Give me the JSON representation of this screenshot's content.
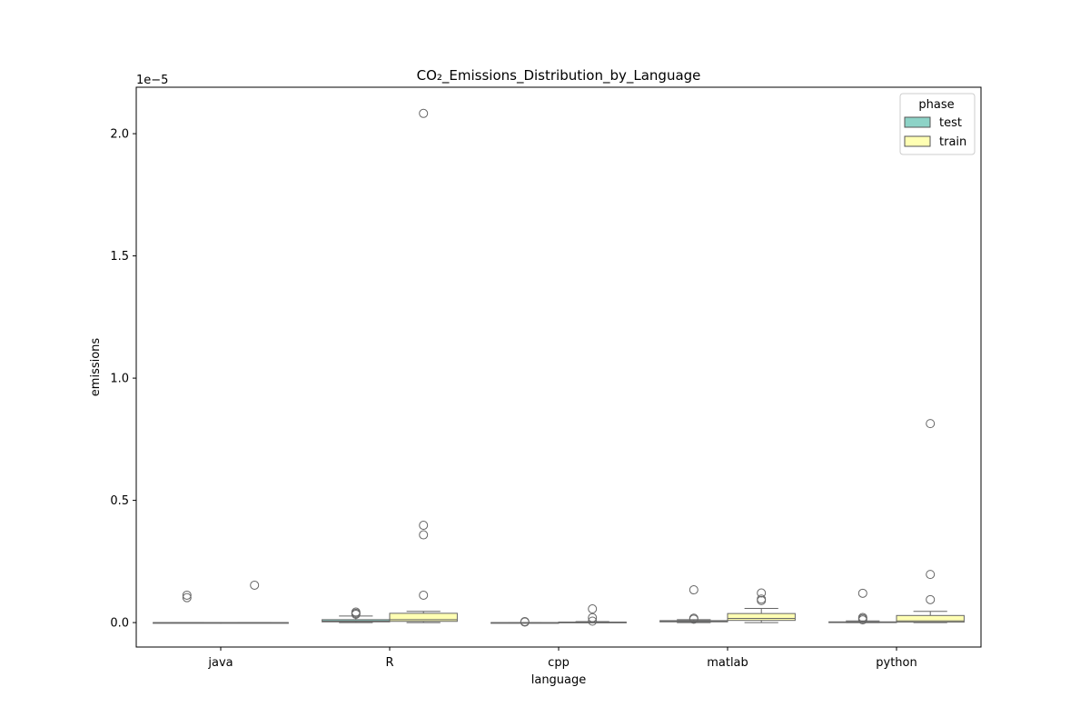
{
  "chart_data": {
    "type": "box",
    "title": "CO₂_Emissions_Distribution_by_Language",
    "xlabel": "language",
    "ylabel": "emissions",
    "y_offset_label": "1e−5",
    "ylim": [
      -1e-06,
      2.19e-05
    ],
    "yticks": [
      0.0,
      0.5,
      1.0,
      1.5,
      2.0
    ],
    "categories": [
      "java",
      "R",
      "cpp",
      "matlab",
      "python"
    ],
    "legend": {
      "title": "phase",
      "position": "top-right"
    },
    "series": [
      {
        "name": "test",
        "color": "#8dd3c7",
        "boxes": [
          {
            "category": "java",
            "q1": 0.0,
            "median": 0.0,
            "q3": 0.0,
            "whislo": 0.0,
            "whishi": 0.0,
            "fliers": [
              1.02e-06,
              1.12e-06
            ]
          },
          {
            "category": "R",
            "q1": 3e-08,
            "median": 6e-08,
            "q3": 1.2e-07,
            "whislo": 0.0,
            "whishi": 2.7e-07,
            "fliers": [
              3.4e-07,
              3.8e-07,
              4.3e-07
            ]
          },
          {
            "category": "cpp",
            "q1": 0.0,
            "median": 0.0,
            "q3": 0.0,
            "whislo": 0.0,
            "whishi": 0.0,
            "fliers": [
              2e-08,
              4e-08
            ]
          },
          {
            "category": "matlab",
            "q1": 3e-08,
            "median": 5e-08,
            "q3": 8e-08,
            "whislo": 0.0,
            "whishi": 1.2e-07,
            "fliers": [
              1.4e-07,
              1.8e-07,
              1.34e-06
            ]
          },
          {
            "category": "python",
            "q1": 0.0,
            "median": 1e-08,
            "q3": 3e-08,
            "whislo": 0.0,
            "whishi": 7e-08,
            "fliers": [
              1.1e-07,
              1.6e-07,
              2.1e-07,
              1.2e-06
            ]
          }
        ]
      },
      {
        "name": "train",
        "color": "#ffffb3",
        "boxes": [
          {
            "category": "java",
            "q1": 0.0,
            "median": 0.0,
            "q3": 0.0,
            "whislo": 0.0,
            "whishi": 0.0,
            "fliers": [
              1.53e-06
            ]
          },
          {
            "category": "R",
            "q1": 5e-08,
            "median": 1.2e-07,
            "q3": 3.8e-07,
            "whislo": 0.0,
            "whishi": 4.6e-07,
            "fliers": [
              1.12e-06,
              3.59e-06,
              3.98e-06,
              2.083e-05
            ]
          },
          {
            "category": "cpp",
            "q1": 0.0,
            "median": 1e-08,
            "q3": 2e-08,
            "whislo": 0.0,
            "whishi": 4e-08,
            "fliers": [
              6e-08,
              2e-07,
              5.6e-07
            ]
          },
          {
            "category": "matlab",
            "q1": 9e-08,
            "median": 1.7e-07,
            "q3": 3.7e-07,
            "whislo": 0.0,
            "whishi": 5.8e-07,
            "fliers": [
              9e-07,
              9.6e-07,
              1.21e-06
            ]
          },
          {
            "category": "python",
            "q1": 2e-08,
            "median": 7e-08,
            "q3": 2.9e-07,
            "whislo": 0.0,
            "whishi": 4.6e-07,
            "fliers": [
              9.4e-07,
              1.97e-06,
              8.14e-06
            ]
          }
        ]
      }
    ]
  }
}
